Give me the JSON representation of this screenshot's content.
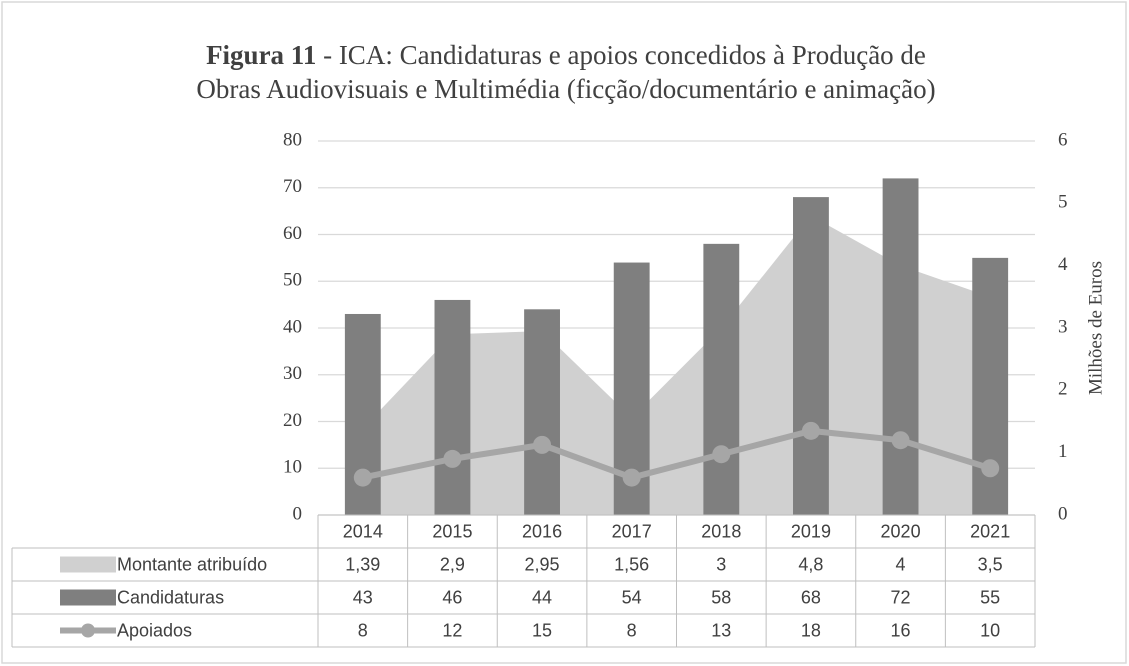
{
  "chart_data": {
    "type": "combo",
    "title_bold": "Figura 11",
    "title_lines": [
      " - ICA: Candidaturas e apoios concedidos à Produção de",
      "Obras Audiovisuais e Multimédia (ficção/documentário e animação)"
    ],
    "categories": [
      "2014",
      "2015",
      "2016",
      "2017",
      "2018",
      "2019",
      "2020",
      "2021"
    ],
    "y2_label": "Milhões de Euros",
    "ylim": [
      0,
      80
    ],
    "yticks": [
      0,
      10,
      20,
      30,
      40,
      50,
      60,
      70,
      80
    ],
    "y2lim": [
      0,
      6
    ],
    "y2ticks": [
      0,
      1,
      2,
      3,
      4,
      5,
      6
    ],
    "grid": true,
    "series": [
      {
        "name": "Montante atribuído",
        "type": "area",
        "axis": "y2",
        "color": "#d0d0d0",
        "values": [
          1.39,
          2.9,
          2.95,
          1.56,
          3,
          4.8,
          4,
          3.5
        ],
        "value_labels": [
          "1,39",
          "2,9",
          "2,95",
          "1,56",
          "3",
          "4,8",
          "4",
          "3,5"
        ]
      },
      {
        "name": "Candidaturas",
        "type": "bar",
        "color": "#7f7f7f",
        "values": [
          43,
          46,
          44,
          54,
          58,
          68,
          72,
          55
        ]
      },
      {
        "name": "Apoiados",
        "type": "line",
        "color": "#a6a6a6",
        "values": [
          8,
          12,
          15,
          8,
          13,
          18,
          16,
          10
        ]
      }
    ]
  }
}
